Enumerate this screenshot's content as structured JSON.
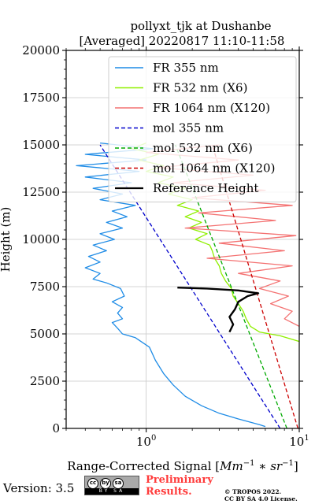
{
  "chart_data": {
    "type": "line",
    "title_line1": "pollyxt_tjk at Dushanbe",
    "title_line2": "[Averaged] 20220817 11:10-11:58",
    "xlabel_main": "Range-Corrected Signal [",
    "xlabel_unit_a": "Mm",
    "xlabel_unit_a_exp": "−1",
    "xlabel_unit_op": " ∗ ",
    "xlabel_unit_b": "sr",
    "xlabel_unit_b_exp": "−1",
    "xlabel_close": "]",
    "ylabel": "Height (m)",
    "xscale": "log",
    "xlim": [
      0.3,
      10
    ],
    "ylim": [
      0,
      20000
    ],
    "grid": true,
    "legend_placement": "upper-right",
    "y_ticks": [
      {
        "value": 0,
        "label": "0"
      },
      {
        "value": 2500,
        "label": "2500"
      },
      {
        "value": 5000,
        "label": "5000"
      },
      {
        "value": 7500,
        "label": "7500"
      },
      {
        "value": 10000,
        "label": "10000"
      },
      {
        "value": 12500,
        "label": "12500"
      },
      {
        "value": 15000,
        "label": "15000"
      },
      {
        "value": 17500,
        "label": "17500"
      },
      {
        "value": 20000,
        "label": "20000"
      }
    ],
    "x_ticks": [
      {
        "value": 1,
        "base": "10",
        "exp": "0"
      },
      {
        "value": 10,
        "base": "10",
        "exp": "1"
      }
    ],
    "series": [
      {
        "name": "FR 355 nm",
        "color": "#1f8ce6",
        "style": "solid",
        "points": [
          [
            6.0,
            100
          ],
          [
            5.5,
            200
          ],
          [
            4.0,
            500
          ],
          [
            3.0,
            800
          ],
          [
            2.3,
            1200
          ],
          [
            1.8,
            1700
          ],
          [
            1.5,
            2300
          ],
          [
            1.3,
            2900
          ],
          [
            1.15,
            3600
          ],
          [
            1.05,
            4300
          ],
          [
            0.85,
            4800
          ],
          [
            0.7,
            5000
          ],
          [
            0.65,
            5300
          ],
          [
            0.6,
            5600
          ],
          [
            0.7,
            5800
          ],
          [
            0.65,
            6100
          ],
          [
            0.7,
            6400
          ],
          [
            0.6,
            6700
          ],
          [
            0.72,
            7000
          ],
          [
            0.68,
            7400
          ],
          [
            0.55,
            7700
          ],
          [
            0.45,
            7900
          ],
          [
            0.5,
            8200
          ],
          [
            0.4,
            8500
          ],
          [
            0.5,
            8800
          ],
          [
            0.42,
            9100
          ],
          [
            0.55,
            9400
          ],
          [
            0.45,
            9700
          ],
          [
            0.62,
            10000
          ],
          [
            0.5,
            10300
          ],
          [
            0.7,
            10600
          ],
          [
            0.55,
            10900
          ],
          [
            0.75,
            11200
          ],
          [
            0.6,
            11500
          ],
          [
            0.85,
            11800
          ],
          [
            0.5,
            12100
          ],
          [
            0.7,
            12400
          ],
          [
            0.45,
            12700
          ],
          [
            0.8,
            13000
          ],
          [
            0.4,
            13300
          ],
          [
            0.9,
            13600
          ],
          [
            0.35,
            13900
          ],
          [
            1.0,
            14200
          ],
          [
            0.4,
            14500
          ],
          [
            1.1,
            14800
          ],
          [
            0.5,
            15100
          ]
        ]
      },
      {
        "name": "FR 532 nm (X6)",
        "color": "#8fef00",
        "style": "solid",
        "points": [
          [
            10.0,
            4600
          ],
          [
            7.5,
            4900
          ],
          [
            5.5,
            5100
          ],
          [
            4.8,
            5400
          ],
          [
            4.5,
            5800
          ],
          [
            4.3,
            6200
          ],
          [
            4.0,
            6600
          ],
          [
            3.7,
            7000
          ],
          [
            3.6,
            7400
          ],
          [
            3.3,
            7800
          ],
          [
            3.1,
            8200
          ],
          [
            3.0,
            8600
          ],
          [
            2.8,
            9000
          ],
          [
            2.7,
            9400
          ],
          [
            2.6,
            9700
          ],
          [
            2.1,
            10000
          ],
          [
            2.5,
            10300
          ],
          [
            1.9,
            10600
          ],
          [
            2.3,
            10900
          ],
          [
            1.8,
            11200
          ],
          [
            2.2,
            11500
          ],
          [
            1.6,
            11800
          ],
          [
            2.0,
            12100
          ],
          [
            1.4,
            12400
          ],
          [
            1.8,
            12700
          ],
          [
            1.2,
            13000
          ],
          [
            1.5,
            13300
          ],
          [
            1.0,
            13600
          ],
          [
            1.3,
            13900
          ],
          [
            0.9,
            14200
          ],
          [
            1.2,
            14500
          ],
          [
            0.8,
            14800
          ],
          [
            1.0,
            15100
          ]
        ]
      },
      {
        "name": "FR 1064 nm (X120)",
        "color": "#f47272",
        "style": "solid",
        "points": [
          [
            10.0,
            5400
          ],
          [
            8.0,
            5800
          ],
          [
            9.0,
            6200
          ],
          [
            6.5,
            6600
          ],
          [
            8.5,
            7000
          ],
          [
            5.5,
            7400
          ],
          [
            7.5,
            7800
          ],
          [
            4.0,
            8200
          ],
          [
            9.0,
            8600
          ],
          [
            2.5,
            9000
          ],
          [
            8.0,
            9400
          ],
          [
            3.0,
            9800
          ],
          [
            9.5,
            10200
          ],
          [
            1.8,
            10600
          ],
          [
            7.0,
            11000
          ],
          [
            2.2,
            11400
          ],
          [
            9.0,
            11800
          ],
          [
            2.0,
            12200
          ],
          [
            6.0,
            12600
          ],
          [
            1.5,
            13000
          ],
          [
            5.0,
            13400
          ],
          [
            1.2,
            13800
          ],
          [
            4.0,
            14200
          ],
          [
            1.0,
            14600
          ],
          [
            3.0,
            15000
          ]
        ]
      },
      {
        "name": "mol 355 nm",
        "color": "#0000cc",
        "style": "dashed",
        "points": [
          [
            7.5,
            0
          ],
          [
            0.5,
            15000
          ]
        ]
      },
      {
        "name": "mol 532 nm (X6)",
        "color": "#00aa00",
        "style": "dashed",
        "points": [
          [
            8.3,
            0
          ],
          [
            1.55,
            15000
          ]
        ]
      },
      {
        "name": "mol 1064 nm (X120)",
        "color": "#cc0000",
        "style": "dashed",
        "points": [
          [
            9.8,
            0
          ],
          [
            2.7,
            15000
          ]
        ]
      },
      {
        "name": "Reference Height",
        "color": "#000000",
        "style": "solid-thick",
        "points": [
          [
            3.5,
            5100
          ],
          [
            3.7,
            5500
          ],
          [
            3.5,
            5900
          ],
          [
            3.8,
            6300
          ],
          [
            4.0,
            6700
          ],
          [
            4.6,
            7000
          ],
          [
            5.4,
            7150
          ],
          [
            4.0,
            7300
          ],
          [
            2.5,
            7400
          ],
          [
            1.6,
            7450
          ]
        ]
      }
    ]
  },
  "footer": {
    "version": "Version: 3.5",
    "cc_symbols": [
      "cc",
      "by",
      "sa"
    ],
    "cc_strip": "BY SA",
    "preliminary_line1": "Preliminary",
    "preliminary_line2": "Results.",
    "copyright_line1": "© TROPOS 2022.",
    "copyright_line2": "CC BY SA 4.0 License."
  }
}
